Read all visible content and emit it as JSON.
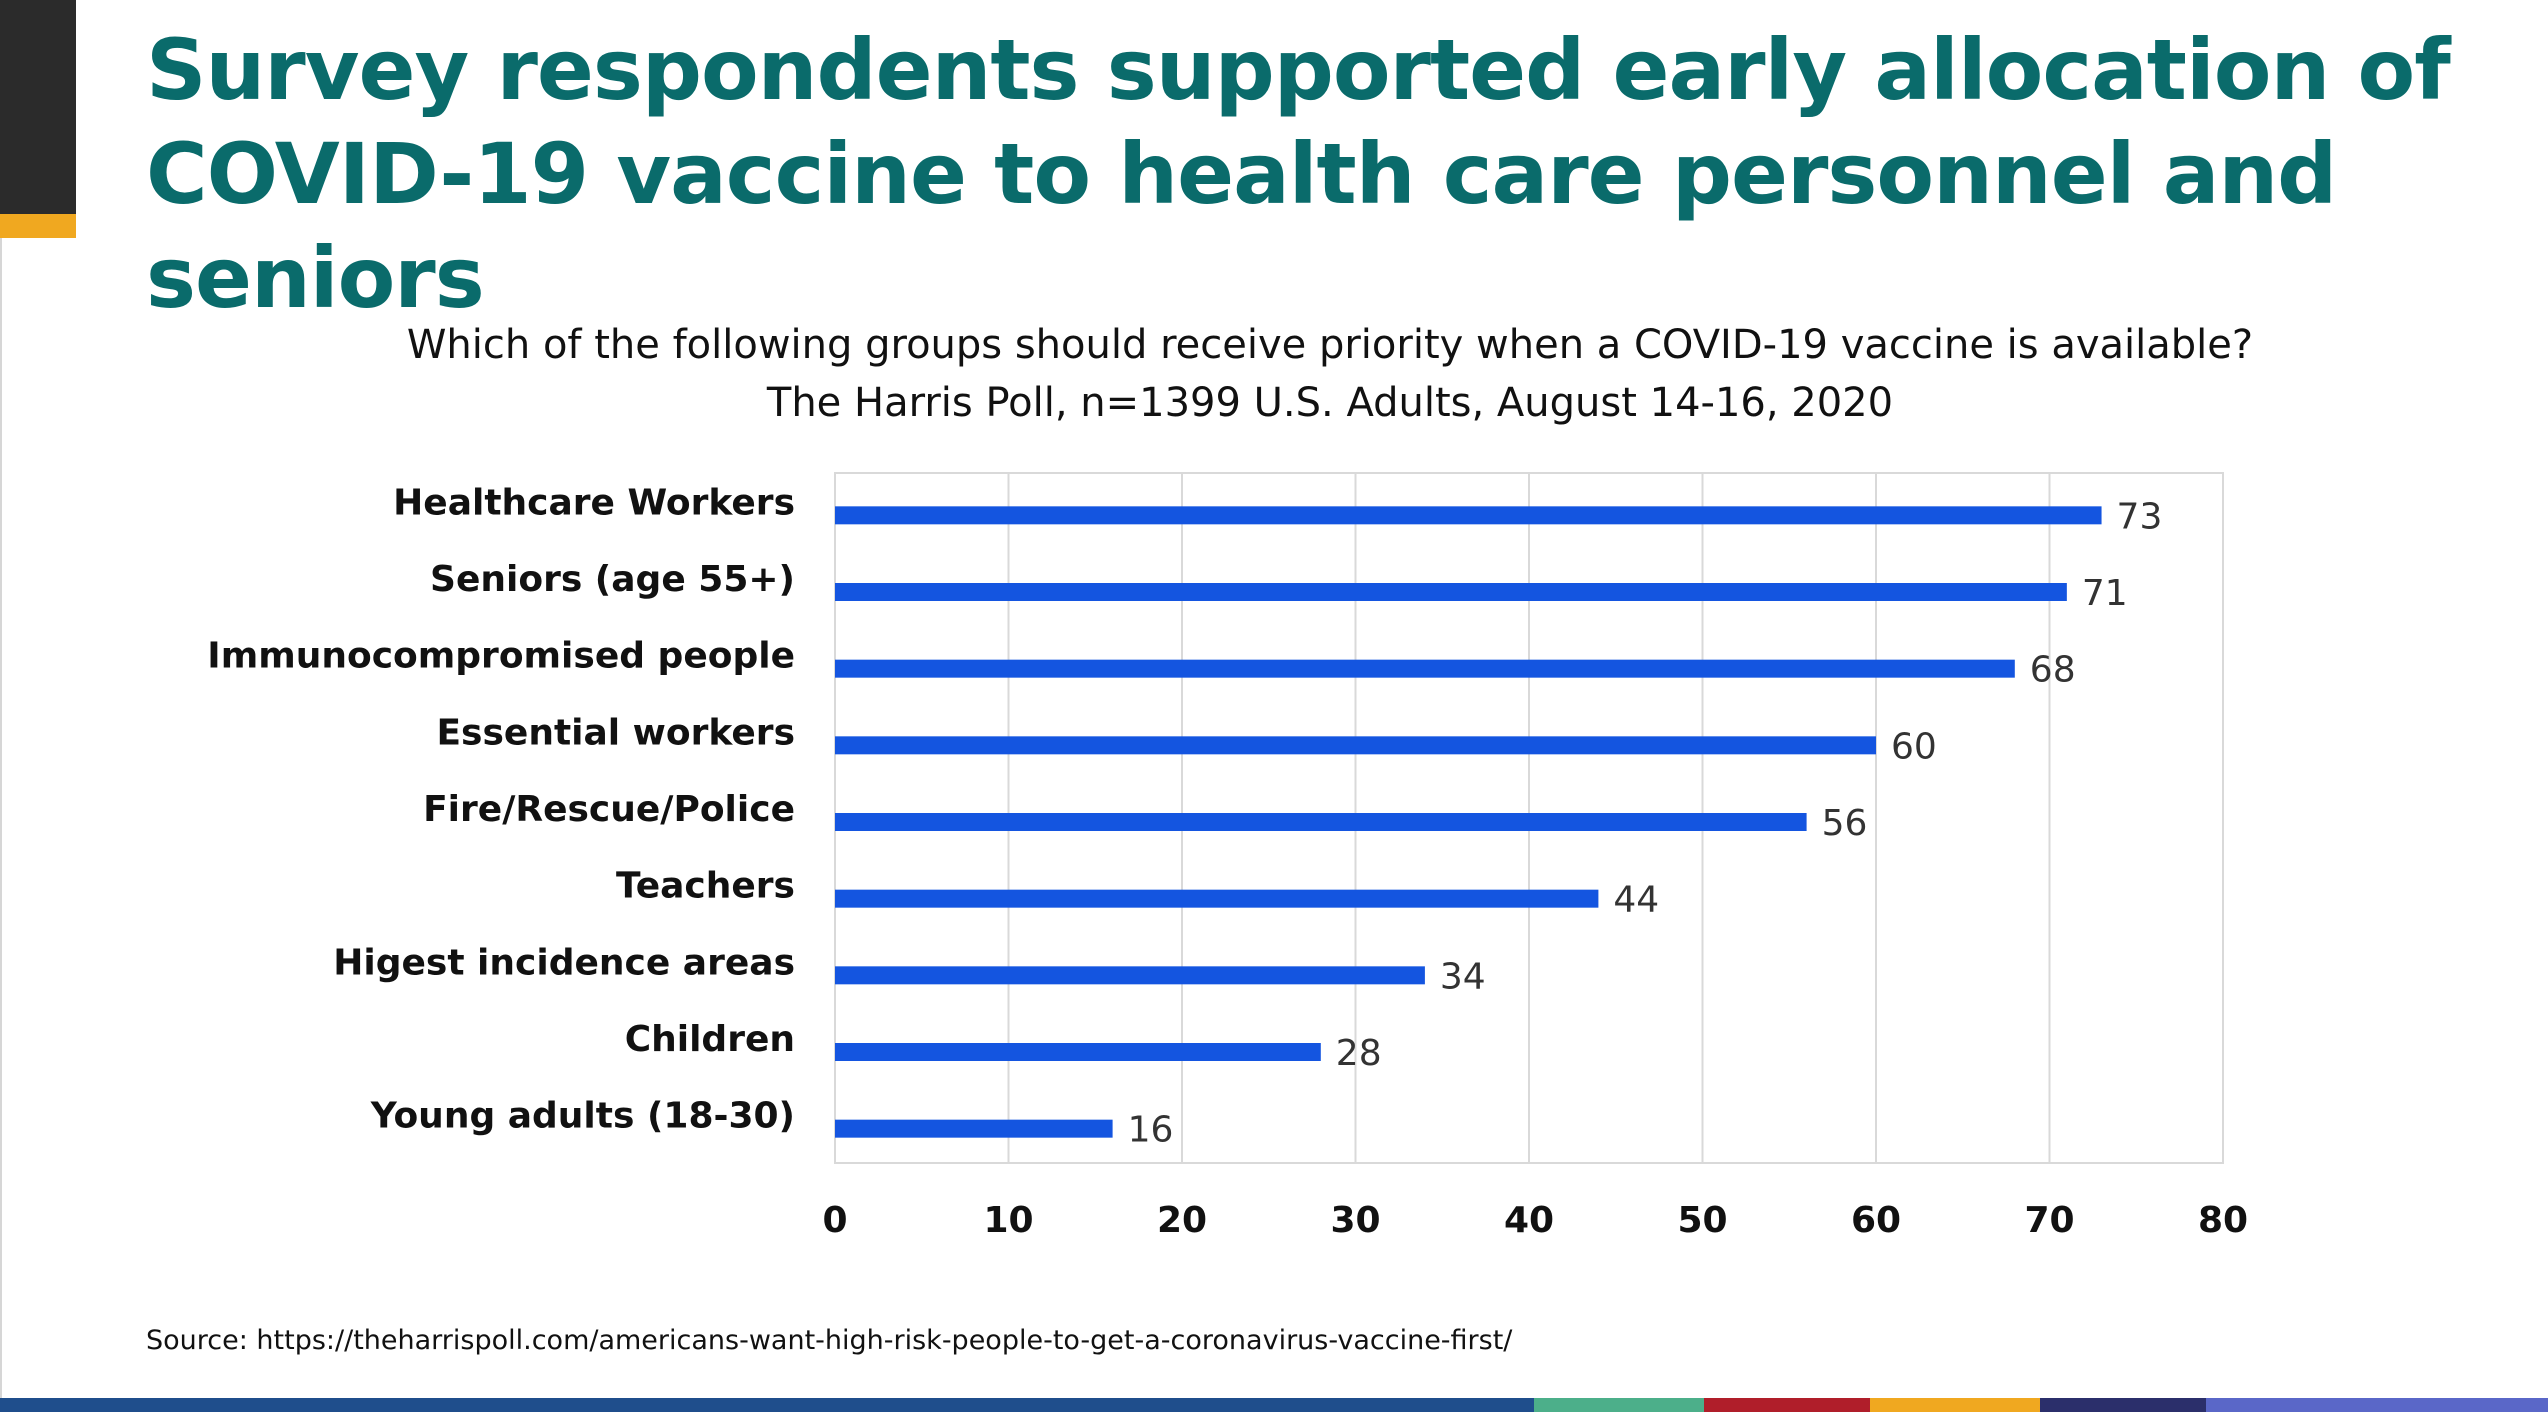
{
  "slide": {
    "title": "Survey respondents supported early allocation of COVID-19 vaccine to health care personnel and seniors",
    "source": "Source: https://theharrispoll.com/americans-want-high-risk-people-to-get-a-coronavirus-vaccine-first/"
  },
  "colors": {
    "title": "#0a6b6b",
    "bar": "#1455e0",
    "grid": "#d9d9d9",
    "accent": "#f0a820"
  },
  "footer_colors": [
    "#1f4e8c",
    "#1f4e8c",
    "#4caf8a",
    "#b01e2a",
    "#f0a820",
    "#2b2f6b",
    "#5a67c8"
  ],
  "chart_data": {
    "type": "bar",
    "orientation": "horizontal",
    "title": "Which of the following groups should receive priority when a COVID-19 vaccine is available?",
    "subtitle": "The Harris Poll, n=1399 U.S. Adults, August 14-16, 2020",
    "categories": [
      "Healthcare Workers",
      "Seniors (age 55+)",
      "Immunocompromised people",
      "Essential workers",
      "Fire/Rescue/Police",
      "Teachers",
      "Higest incidence areas",
      "Children",
      "Young adults (18-30)"
    ],
    "values": [
      73,
      71,
      68,
      60,
      56,
      44,
      34,
      28,
      16
    ],
    "xlim": [
      0,
      80
    ],
    "xticks": [
      0,
      10,
      20,
      30,
      40,
      50,
      60,
      70,
      80
    ],
    "xlabel": "",
    "ylabel": "",
    "grid": true,
    "legend": "none"
  }
}
